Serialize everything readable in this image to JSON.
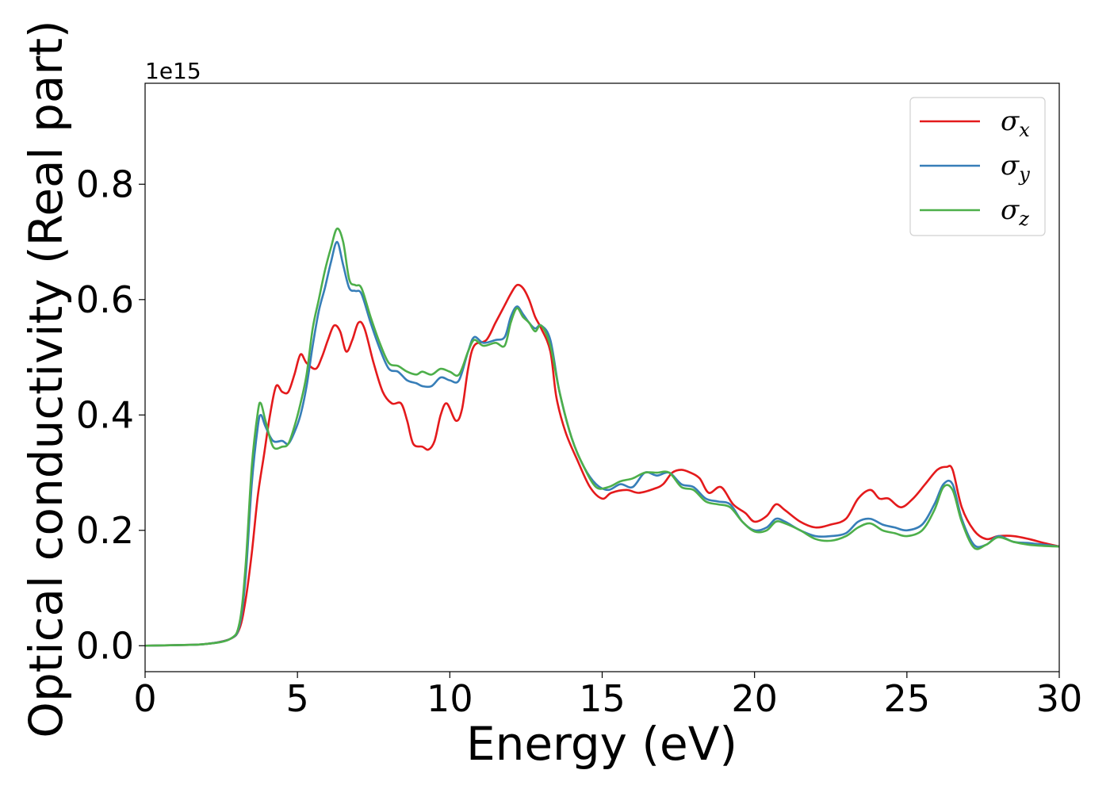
{
  "chart_data": {
    "type": "line",
    "xlabel": "Energy (eV)",
    "ylabel": "Optical conductivity (Real part)",
    "y_offset_text": "1e15",
    "xlim": [
      0,
      30
    ],
    "ylim": [
      -0.045,
      0.975
    ],
    "y_scale_factor": 1000000000000000.0,
    "grid": false,
    "legend_position": "top-right",
    "x_ticks": [
      0,
      5,
      10,
      15,
      20,
      25,
      30
    ],
    "x_tick_labels": [
      "0",
      "5",
      "10",
      "15",
      "20",
      "25",
      "30"
    ],
    "y_ticks": [
      0.0,
      0.2,
      0.4,
      0.6,
      0.8
    ],
    "y_tick_labels": [
      "0.0",
      "0.2",
      "0.4",
      "0.6",
      "0.8"
    ],
    "series": [
      {
        "name": "σx",
        "sub": "x",
        "color": "#e41a1c",
        "points": [
          [
            0,
            0
          ],
          [
            1,
            0.001
          ],
          [
            2,
            0.003
          ],
          [
            2.8,
            0.012
          ],
          [
            3.1,
            0.03
          ],
          [
            3.3,
            0.08
          ],
          [
            3.5,
            0.16
          ],
          [
            3.7,
            0.26
          ],
          [
            3.9,
            0.33
          ],
          [
            4.1,
            0.4
          ],
          [
            4.3,
            0.45
          ],
          [
            4.5,
            0.44
          ],
          [
            4.7,
            0.44
          ],
          [
            4.9,
            0.47
          ],
          [
            5.1,
            0.505
          ],
          [
            5.3,
            0.49
          ],
          [
            5.6,
            0.48
          ],
          [
            5.8,
            0.5
          ],
          [
            6.0,
            0.53
          ],
          [
            6.2,
            0.555
          ],
          [
            6.4,
            0.545
          ],
          [
            6.6,
            0.51
          ],
          [
            6.8,
            0.53
          ],
          [
            7.0,
            0.56
          ],
          [
            7.2,
            0.55
          ],
          [
            7.5,
            0.49
          ],
          [
            7.8,
            0.44
          ],
          [
            8.1,
            0.42
          ],
          [
            8.4,
            0.42
          ],
          [
            8.6,
            0.39
          ],
          [
            8.8,
            0.35
          ],
          [
            9.1,
            0.345
          ],
          [
            9.3,
            0.34
          ],
          [
            9.5,
            0.355
          ],
          [
            9.7,
            0.4
          ],
          [
            9.9,
            0.42
          ],
          [
            10.2,
            0.39
          ],
          [
            10.4,
            0.41
          ],
          [
            10.6,
            0.48
          ],
          [
            10.8,
            0.52
          ],
          [
            11.2,
            0.53
          ],
          [
            11.5,
            0.56
          ],
          [
            11.8,
            0.59
          ],
          [
            12.0,
            0.61
          ],
          [
            12.2,
            0.625
          ],
          [
            12.4,
            0.62
          ],
          [
            12.6,
            0.6
          ],
          [
            12.8,
            0.57
          ],
          [
            13.0,
            0.55
          ],
          [
            13.3,
            0.51
          ],
          [
            13.5,
            0.43
          ],
          [
            13.8,
            0.37
          ],
          [
            14.2,
            0.32
          ],
          [
            14.6,
            0.275
          ],
          [
            15.0,
            0.255
          ],
          [
            15.3,
            0.265
          ],
          [
            15.8,
            0.27
          ],
          [
            16.2,
            0.265
          ],
          [
            16.7,
            0.272
          ],
          [
            17.0,
            0.28
          ],
          [
            17.3,
            0.3
          ],
          [
            17.6,
            0.305
          ],
          [
            17.9,
            0.3
          ],
          [
            18.2,
            0.29
          ],
          [
            18.5,
            0.265
          ],
          [
            18.9,
            0.275
          ],
          [
            19.3,
            0.245
          ],
          [
            19.7,
            0.23
          ],
          [
            20.0,
            0.215
          ],
          [
            20.4,
            0.225
          ],
          [
            20.7,
            0.245
          ],
          [
            21.0,
            0.235
          ],
          [
            21.5,
            0.215
          ],
          [
            22.0,
            0.205
          ],
          [
            22.5,
            0.21
          ],
          [
            23.0,
            0.22
          ],
          [
            23.4,
            0.255
          ],
          [
            23.8,
            0.27
          ],
          [
            24.1,
            0.255
          ],
          [
            24.4,
            0.255
          ],
          [
            24.8,
            0.24
          ],
          [
            25.2,
            0.255
          ],
          [
            25.6,
            0.28
          ],
          [
            26.0,
            0.305
          ],
          [
            26.3,
            0.31
          ],
          [
            26.5,
            0.305
          ],
          [
            26.8,
            0.24
          ],
          [
            27.2,
            0.2
          ],
          [
            27.6,
            0.185
          ],
          [
            28.0,
            0.19
          ],
          [
            28.5,
            0.19
          ],
          [
            29.0,
            0.185
          ],
          [
            29.5,
            0.178
          ],
          [
            30,
            0.172
          ]
        ]
      },
      {
        "name": "σy",
        "sub": "y",
        "color": "#377eb8",
        "points": [
          [
            0,
            0
          ],
          [
            1,
            0.001
          ],
          [
            2,
            0.003
          ],
          [
            2.8,
            0.012
          ],
          [
            3.1,
            0.035
          ],
          [
            3.3,
            0.12
          ],
          [
            3.5,
            0.28
          ],
          [
            3.7,
            0.38
          ],
          [
            3.8,
            0.4
          ],
          [
            3.95,
            0.38
          ],
          [
            4.2,
            0.355
          ],
          [
            4.5,
            0.355
          ],
          [
            4.7,
            0.35
          ],
          [
            4.9,
            0.37
          ],
          [
            5.1,
            0.4
          ],
          [
            5.3,
            0.45
          ],
          [
            5.5,
            0.52
          ],
          [
            5.7,
            0.58
          ],
          [
            5.9,
            0.62
          ],
          [
            6.1,
            0.665
          ],
          [
            6.3,
            0.7
          ],
          [
            6.5,
            0.66
          ],
          [
            6.7,
            0.62
          ],
          [
            6.9,
            0.615
          ],
          [
            7.1,
            0.61
          ],
          [
            7.4,
            0.56
          ],
          [
            7.7,
            0.515
          ],
          [
            8.0,
            0.48
          ],
          [
            8.3,
            0.475
          ],
          [
            8.6,
            0.46
          ],
          [
            8.9,
            0.455
          ],
          [
            9.1,
            0.45
          ],
          [
            9.4,
            0.45
          ],
          [
            9.7,
            0.465
          ],
          [
            10.0,
            0.46
          ],
          [
            10.3,
            0.46
          ],
          [
            10.6,
            0.51
          ],
          [
            10.8,
            0.535
          ],
          [
            11.1,
            0.525
          ],
          [
            11.5,
            0.53
          ],
          [
            11.8,
            0.535
          ],
          [
            12.0,
            0.57
          ],
          [
            12.2,
            0.588
          ],
          [
            12.4,
            0.575
          ],
          [
            12.6,
            0.56
          ],
          [
            12.8,
            0.55
          ],
          [
            13.0,
            0.555
          ],
          [
            13.3,
            0.53
          ],
          [
            13.6,
            0.44
          ],
          [
            14.0,
            0.36
          ],
          [
            14.4,
            0.31
          ],
          [
            14.8,
            0.28
          ],
          [
            15.2,
            0.27
          ],
          [
            15.6,
            0.28
          ],
          [
            16.0,
            0.275
          ],
          [
            16.4,
            0.3
          ],
          [
            16.8,
            0.295
          ],
          [
            17.2,
            0.3
          ],
          [
            17.6,
            0.28
          ],
          [
            18.0,
            0.275
          ],
          [
            18.4,
            0.255
          ],
          [
            18.8,
            0.25
          ],
          [
            19.2,
            0.245
          ],
          [
            19.6,
            0.215
          ],
          [
            20.0,
            0.2
          ],
          [
            20.4,
            0.205
          ],
          [
            20.7,
            0.22
          ],
          [
            21.0,
            0.215
          ],
          [
            21.5,
            0.2
          ],
          [
            22.0,
            0.19
          ],
          [
            22.5,
            0.19
          ],
          [
            23.0,
            0.195
          ],
          [
            23.4,
            0.215
          ],
          [
            23.8,
            0.22
          ],
          [
            24.2,
            0.21
          ],
          [
            24.6,
            0.205
          ],
          [
            25.0,
            0.2
          ],
          [
            25.5,
            0.21
          ],
          [
            25.9,
            0.245
          ],
          [
            26.2,
            0.28
          ],
          [
            26.5,
            0.28
          ],
          [
            26.8,
            0.22
          ],
          [
            27.2,
            0.175
          ],
          [
            27.6,
            0.175
          ],
          [
            28.0,
            0.19
          ],
          [
            28.5,
            0.18
          ],
          [
            29.0,
            0.178
          ],
          [
            29.5,
            0.175
          ],
          [
            30,
            0.172
          ]
        ]
      },
      {
        "name": "σz",
        "sub": "z",
        "color": "#4daf4a",
        "points": [
          [
            0,
            0
          ],
          [
            1,
            0.001
          ],
          [
            2,
            0.003
          ],
          [
            2.8,
            0.012
          ],
          [
            3.1,
            0.04
          ],
          [
            3.3,
            0.14
          ],
          [
            3.5,
            0.31
          ],
          [
            3.7,
            0.405
          ],
          [
            3.8,
            0.42
          ],
          [
            3.95,
            0.39
          ],
          [
            4.2,
            0.345
          ],
          [
            4.5,
            0.345
          ],
          [
            4.7,
            0.35
          ],
          [
            4.9,
            0.38
          ],
          [
            5.1,
            0.42
          ],
          [
            5.3,
            0.47
          ],
          [
            5.5,
            0.55
          ],
          [
            5.7,
            0.6
          ],
          [
            5.9,
            0.65
          ],
          [
            6.1,
            0.69
          ],
          [
            6.3,
            0.723
          ],
          [
            6.5,
            0.7
          ],
          [
            6.7,
            0.635
          ],
          [
            6.9,
            0.625
          ],
          [
            7.1,
            0.62
          ],
          [
            7.4,
            0.57
          ],
          [
            7.7,
            0.525
          ],
          [
            8.0,
            0.49
          ],
          [
            8.3,
            0.485
          ],
          [
            8.6,
            0.475
          ],
          [
            8.9,
            0.47
          ],
          [
            9.1,
            0.475
          ],
          [
            9.4,
            0.47
          ],
          [
            9.7,
            0.48
          ],
          [
            10.0,
            0.475
          ],
          [
            10.3,
            0.47
          ],
          [
            10.6,
            0.51
          ],
          [
            10.8,
            0.53
          ],
          [
            11.1,
            0.52
          ],
          [
            11.5,
            0.525
          ],
          [
            11.8,
            0.52
          ],
          [
            12.0,
            0.56
          ],
          [
            12.2,
            0.585
          ],
          [
            12.4,
            0.57
          ],
          [
            12.6,
            0.56
          ],
          [
            12.8,
            0.545
          ],
          [
            13.0,
            0.555
          ],
          [
            13.3,
            0.52
          ],
          [
            13.6,
            0.44
          ],
          [
            14.0,
            0.36
          ],
          [
            14.4,
            0.31
          ],
          [
            14.8,
            0.275
          ],
          [
            15.2,
            0.275
          ],
          [
            15.6,
            0.285
          ],
          [
            16.0,
            0.29
          ],
          [
            16.4,
            0.3
          ],
          [
            16.8,
            0.3
          ],
          [
            17.2,
            0.3
          ],
          [
            17.6,
            0.275
          ],
          [
            18.0,
            0.27
          ],
          [
            18.4,
            0.25
          ],
          [
            18.8,
            0.245
          ],
          [
            19.2,
            0.24
          ],
          [
            19.6,
            0.215
          ],
          [
            20.0,
            0.198
          ],
          [
            20.4,
            0.2
          ],
          [
            20.7,
            0.215
          ],
          [
            21.0,
            0.212
          ],
          [
            21.5,
            0.2
          ],
          [
            22.0,
            0.185
          ],
          [
            22.5,
            0.182
          ],
          [
            23.0,
            0.19
          ],
          [
            23.4,
            0.205
          ],
          [
            23.8,
            0.212
          ],
          [
            24.2,
            0.2
          ],
          [
            24.6,
            0.195
          ],
          [
            25.0,
            0.19
          ],
          [
            25.5,
            0.2
          ],
          [
            25.9,
            0.235
          ],
          [
            26.2,
            0.275
          ],
          [
            26.5,
            0.27
          ],
          [
            26.8,
            0.215
          ],
          [
            27.2,
            0.17
          ],
          [
            27.6,
            0.175
          ],
          [
            28.0,
            0.188
          ],
          [
            28.5,
            0.18
          ],
          [
            29.0,
            0.175
          ],
          [
            29.5,
            0.173
          ],
          [
            30,
            0.172
          ]
        ]
      }
    ]
  }
}
